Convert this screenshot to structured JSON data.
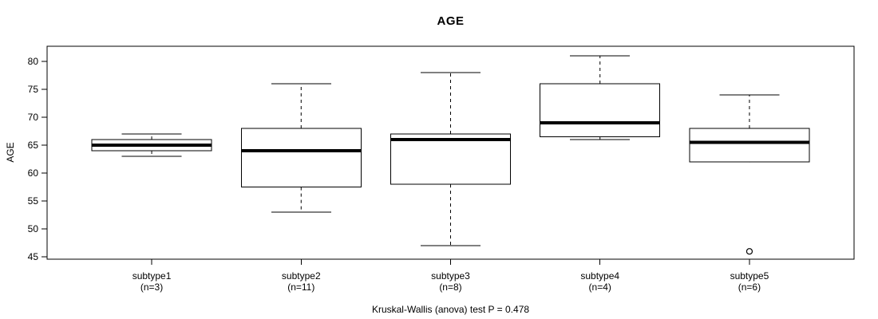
{
  "title": "AGE",
  "caption": "Kruskal-Wallis (anova) test P = 0.478",
  "colors": {
    "foreground": "#000000",
    "background": "#ffffff"
  },
  "chart_data": {
    "type": "boxplot",
    "title": "AGE",
    "ylabel": "AGE",
    "xlabel": "",
    "ylim": [
      44.6,
      82.7
    ],
    "yticks": [
      45,
      50,
      55,
      60,
      65,
      70,
      75,
      80
    ],
    "grid": false,
    "categories": [
      "subtype1",
      "subtype2",
      "subtype3",
      "subtype4",
      "subtype5"
    ],
    "group_sizes": [
      "(n=3)",
      "(n=11)",
      "(n=8)",
      "(n=4)",
      "(n=6)"
    ],
    "series": [
      {
        "name": "subtype1",
        "n": 3,
        "whisker_low": 63,
        "q1": 64,
        "median": 65,
        "q3": 66,
        "whisker_high": 67,
        "outliers": []
      },
      {
        "name": "subtype2",
        "n": 11,
        "whisker_low": 53,
        "q1": 57.5,
        "median": 64,
        "q3": 68,
        "whisker_high": 76,
        "outliers": []
      },
      {
        "name": "subtype3",
        "n": 8,
        "whisker_low": 47,
        "q1": 58,
        "median": 66,
        "q3": 67,
        "whisker_high": 78,
        "outliers": []
      },
      {
        "name": "subtype4",
        "n": 4,
        "whisker_low": 66,
        "q1": 66.5,
        "median": 69,
        "q3": 76,
        "whisker_high": 81,
        "outliers": []
      },
      {
        "name": "subtype5",
        "n": 6,
        "whisker_low": 62,
        "q1": 62,
        "median": 65.5,
        "q3": 68,
        "whisker_high": 74,
        "outliers": [
          46
        ]
      }
    ],
    "annotation": "Kruskal-Wallis (anova) test P = 0.478"
  }
}
